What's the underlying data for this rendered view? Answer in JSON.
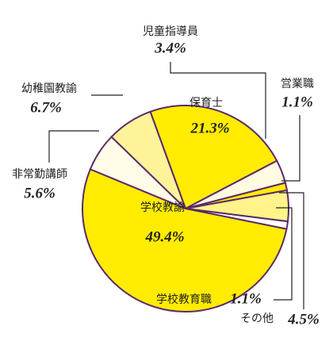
{
  "chart_data": {
    "type": "pie",
    "categories": [
      "保育士",
      "児童指導員",
      "営業職",
      "その他",
      "学校教育職",
      "学校教諭",
      "非常勤講師",
      "幼稚園教諭"
    ],
    "values": [
      21.3,
      3.4,
      1.1,
      4.5,
      1.1,
      49.4,
      5.6,
      6.7
    ],
    "value_labels": [
      "21.3%",
      "3.4%",
      "1.1%",
      "4.5%",
      "1.1%",
      "49.4%",
      "5.6%",
      "6.7%"
    ],
    "colors": [
      "#ffec00",
      "#fffbe3",
      "#ffec00",
      "#fff38a",
      "#ffffff",
      "#ffec00",
      "#fffce8",
      "#fff39a"
    ],
    "edge_color": "#5b2a6b"
  }
}
